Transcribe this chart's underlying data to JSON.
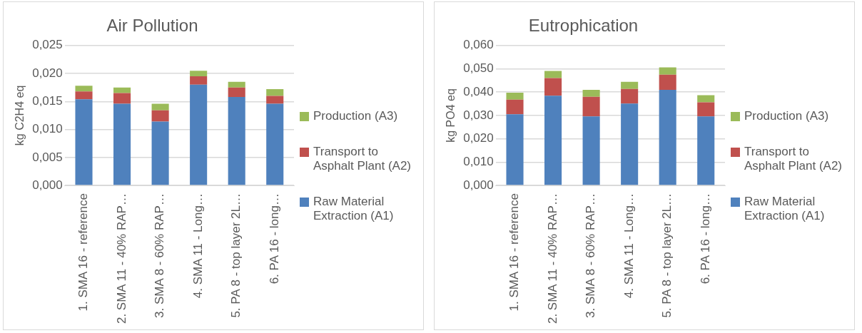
{
  "chart_data": [
    {
      "type": "bar",
      "title": "Air Pollution",
      "ylabel": "kg C2H4 eq",
      "stacked": true,
      "grid": "y",
      "legend": "right",
      "categories": [
        "1. SMA 16 - reference",
        "2. SMA 11 - 40% RAP…",
        "3. SMA 8 - 60% RAP…",
        "4. SMA 11 - Long…",
        "5. PA 8 - top layer 2L…",
        "6. PA 16 - long…"
      ],
      "ylim": [
        0,
        0.025
      ],
      "yticks": [
        {
          "value": 0,
          "label": "0,000"
        },
        {
          "value": 0.005,
          "label": "0,005"
        },
        {
          "value": 0.01,
          "label": "0,010"
        },
        {
          "value": 0.015,
          "label": "0,015"
        },
        {
          "value": 0.02,
          "label": "0,020"
        },
        {
          "value": 0.025,
          "label": "0,025"
        }
      ],
      "series": [
        {
          "name": "Raw Material Extraction (A1)",
          "color": "#4f81bd",
          "values": [
            0.0154,
            0.0146,
            0.0114,
            0.018,
            0.0158,
            0.0146
          ]
        },
        {
          "name": "Transport to Asphalt Plant (A2)",
          "color": "#c0504d",
          "values": [
            0.0014,
            0.0019,
            0.002,
            0.0015,
            0.0017,
            0.0014
          ]
        },
        {
          "name": "Production (A3)",
          "color": "#9bbb59",
          "values": [
            0.001,
            0.001,
            0.0012,
            0.001,
            0.001,
            0.0012
          ]
        }
      ]
    },
    {
      "type": "bar",
      "title": "Eutrophication",
      "ylabel": "kg PO4 eq",
      "stacked": true,
      "grid": "y",
      "legend": "right",
      "categories": [
        "1. SMA 16 - reference",
        "2. SMA 11 - 40% RAP…",
        "3. SMA 8 - 60% RAP…",
        "4. SMA 11 - Long…",
        "5. PA 8 - top layer 2L…",
        "6. PA 16 - long…"
      ],
      "ylim": [
        0,
        0.06
      ],
      "yticks": [
        {
          "value": 0,
          "label": "0,000"
        },
        {
          "value": 0.01,
          "label": "0,010"
        },
        {
          "value": 0.02,
          "label": "0,020"
        },
        {
          "value": 0.03,
          "label": "0,030"
        },
        {
          "value": 0.04,
          "label": "0,040"
        },
        {
          "value": 0.05,
          "label": "0,050"
        },
        {
          "value": 0.06,
          "label": "0,060"
        }
      ],
      "series": [
        {
          "name": "Raw Material Extraction (A1)",
          "color": "#4f81bd",
          "values": [
            0.0305,
            0.0385,
            0.0296,
            0.0351,
            0.041,
            0.0296
          ]
        },
        {
          "name": "Transport to Asphalt Plant (A2)",
          "color": "#c0504d",
          "values": [
            0.0063,
            0.0075,
            0.0084,
            0.0063,
            0.0065,
            0.006
          ]
        },
        {
          "name": "Production (A3)",
          "color": "#9bbb59",
          "values": [
            0.003,
            0.0031,
            0.003,
            0.003,
            0.0031,
            0.0031
          ]
        }
      ]
    }
  ]
}
